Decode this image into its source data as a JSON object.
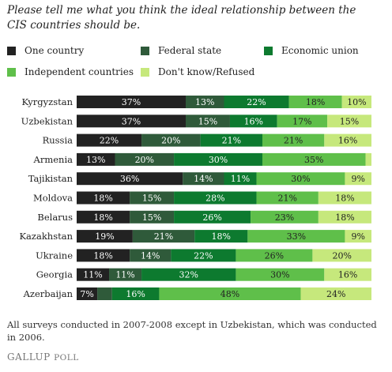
{
  "title": "Please tell me what you think the ideal relationship between the CIS countries should be.",
  "footnote": "All surveys conducted in 2007-2008 except in Uzbekistan, which was conducted in 2006.",
  "logo": {
    "main": "GALLUP",
    "suffix": "POLL"
  },
  "chart_data": {
    "type": "bar",
    "stacked": true,
    "orientation": "horizontal",
    "xlim": [
      0,
      100
    ],
    "legend_position": "top",
    "categories": [
      "Kyrgyzstan",
      "Uzbekistan",
      "Russia",
      "Armenia",
      "Tajikistan",
      "Moldova",
      "Belarus",
      "Kazakhstan",
      "Ukraine",
      "Georgia",
      "Azerbaijan"
    ],
    "series": [
      {
        "name": "One country",
        "color": "#222222",
        "values": [
          37,
          37,
          22,
          13,
          36,
          18,
          18,
          19,
          18,
          11,
          7
        ],
        "labels": [
          "37%",
          "37%",
          "22%",
          "13%",
          "36%",
          "18%",
          "18%",
          "19%",
          "18%",
          "11%",
          "7%"
        ]
      },
      {
        "name": "Federal state",
        "color": "#2f5a3a",
        "values": [
          13,
          15,
          20,
          20,
          14,
          15,
          15,
          21,
          14,
          11,
          5
        ],
        "labels": [
          "13%",
          "15%",
          "20%",
          "20%",
          "14%",
          "15%",
          "15%",
          "21%",
          "14%",
          "11%",
          ""
        ]
      },
      {
        "name": "Economic union",
        "color": "#0d7a2f",
        "values": [
          22,
          16,
          21,
          30,
          11,
          28,
          26,
          18,
          22,
          32,
          16
        ],
        "labels": [
          "22%",
          "16%",
          "21%",
          "30%",
          "11%",
          "28%",
          "26%",
          "18%",
          "22%",
          "32%",
          "16%"
        ]
      },
      {
        "name": "Independent countries",
        "color": "#5fbf4a",
        "values": [
          18,
          17,
          21,
          35,
          30,
          21,
          23,
          33,
          26,
          30,
          48
        ],
        "labels": [
          "18%",
          "17%",
          "21%",
          "35%",
          "30%",
          "21%",
          "23%",
          "33%",
          "26%",
          "30%",
          "48%"
        ]
      },
      {
        "name": "Don't know/Refused",
        "color": "#c6e87c",
        "values": [
          10,
          15,
          16,
          2,
          9,
          18,
          18,
          9,
          20,
          16,
          24
        ],
        "labels": [
          "10%",
          "15%",
          "16%",
          "",
          "9%",
          "18%",
          "18%",
          "9%",
          "20%",
          "16%",
          "24%"
        ]
      }
    ]
  }
}
